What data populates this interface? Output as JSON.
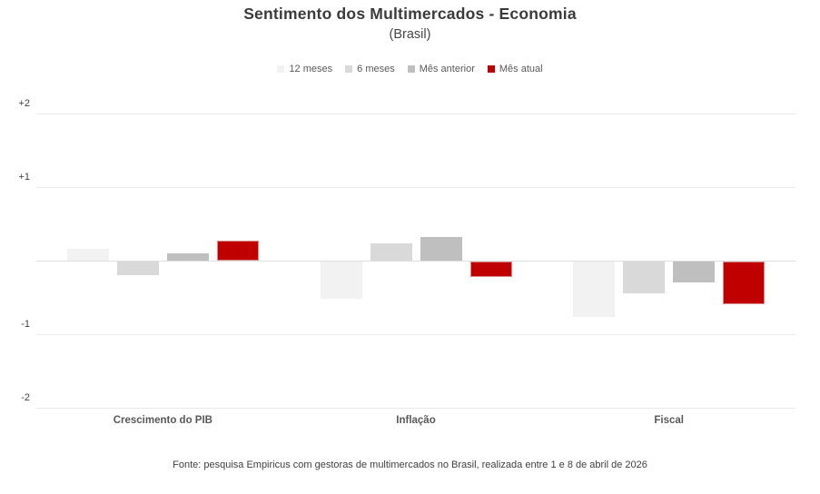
{
  "chart_data": {
    "type": "bar",
    "title": "Sentimento dos Multimercados - Economia",
    "subtitle": "(Brasil)",
    "categories": [
      "Crescimento do PIB",
      "Inflação",
      "Fiscal"
    ],
    "series": [
      {
        "name": "12 meses",
        "color": "#f2f2f2",
        "values": [
          0.16,
          -0.5,
          -0.75
        ]
      },
      {
        "name": "6 meses",
        "color": "#d9d9d9",
        "values": [
          -0.19,
          0.23,
          -0.43
        ]
      },
      {
        "name": "Mês anterior",
        "color": "#bfbfbf",
        "values": [
          0.1,
          0.32,
          -0.29
        ]
      },
      {
        "name": "Mês atual",
        "color": "#c00000",
        "border_color": "#d98a8a",
        "values": [
          0.27,
          -0.21,
          -0.58
        ]
      }
    ],
    "ylim": [
      -2,
      2
    ],
    "yticks": [
      {
        "value": 2,
        "label": "+2"
      },
      {
        "value": 1,
        "label": "+1"
      },
      {
        "value": -1,
        "label": "-1"
      },
      {
        "value": -2,
        "label": "-2"
      }
    ],
    "gridline_values": [
      2,
      1,
      0,
      -1,
      -2
    ],
    "grid": true,
    "legend_position": "top"
  },
  "footer": "Fonte: pesquisa Empiricus com gestoras de multimercados no Brasil, realizada entre 1 e 8 de abril de 2026",
  "colors": {
    "accent_red": "#c00000",
    "gray_light": "#f2f2f2",
    "gray_mid": "#d9d9d9",
    "gray_dark": "#bfbfbf",
    "text_dark": "#3b3b3b",
    "text_gray": "#595959",
    "gridline": "#e9e9e9"
  }
}
